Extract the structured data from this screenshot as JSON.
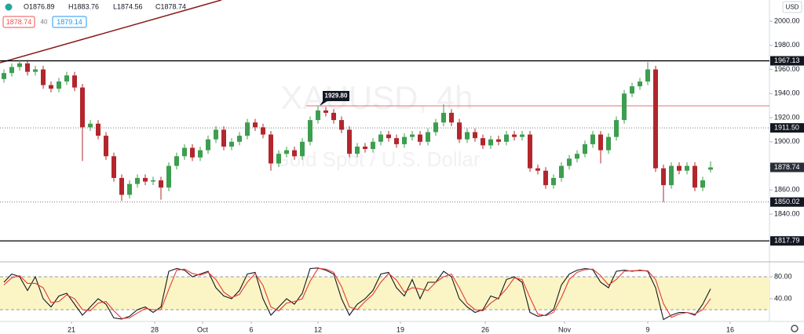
{
  "header": {
    "ohlc": [
      "O1876.89",
      "H1883.76",
      "L1874.56",
      "C1878.74"
    ],
    "bid": "1878.74",
    "spread": "40",
    "ask": "1879.14",
    "currency": "USD",
    "watermark": [
      "XAUUSD, 4h",
      "Gold Spot / U.S. Dollar"
    ]
  },
  "chart_data": [
    {
      "type": "candlestick",
      "up_color": "#3d9e4f",
      "down_color": "#b3262d",
      "xlim": [
        0,
        98
      ],
      "xticks": [
        {
          "value": 9.1,
          "label": "21"
        },
        {
          "value": 19.7,
          "label": "28"
        },
        {
          "value": 25.8,
          "label": "Oct"
        },
        {
          "value": 32,
          "label": "6"
        },
        {
          "value": 40.5,
          "label": "12"
        },
        {
          "value": 51,
          "label": "19"
        },
        {
          "value": 61.8,
          "label": "26"
        },
        {
          "value": 71.9,
          "label": "Nov"
        },
        {
          "value": 82.5,
          "label": "9"
        },
        {
          "value": 93,
          "label": "16"
        }
      ],
      "ylim": [
        1803,
        2017.56
      ],
      "yticks": [
        {
          "value": 1840,
          "label": "1840.00"
        },
        {
          "value": 1860,
          "label": "1860.00"
        },
        {
          "value": 1880,
          "label": "1880.00"
        },
        {
          "value": 1900,
          "label": "1900.00"
        },
        {
          "value": 1920,
          "label": "1920.00"
        },
        {
          "value": 1940,
          "label": "1940.00"
        },
        {
          "value": 1960,
          "label": "1960.00"
        },
        {
          "value": 1980,
          "label": "1980.00"
        },
        {
          "value": 2000,
          "label": "2000.00"
        }
      ],
      "levels": [
        {
          "value": 1967.13,
          "style": "solid"
        },
        {
          "value": 1911.5,
          "label": "1911.50",
          "style": "dotted"
        },
        {
          "value": 1850.02,
          "style": "dotted"
        },
        {
          "value": 1817.79,
          "style": "solid"
        }
      ],
      "annotation": {
        "value": 1929.8,
        "label": "1929.80",
        "color": "#e57373"
      },
      "last_price": 1878.74,
      "open": [
        1952,
        1957,
        1962,
        1965,
        1958,
        1960,
        1947,
        1944,
        1950,
        1955,
        1945,
        1912,
        1915,
        1905,
        1888,
        1870,
        1856,
        1865,
        1870,
        1867,
        1868,
        1862,
        1880,
        1888,
        1895,
        1887,
        1893,
        1902,
        1910,
        1896,
        1900,
        1905,
        1916,
        1912,
        1906,
        1882,
        1890,
        1893,
        1888,
        1900,
        1918,
        1926,
        1924,
        1918,
        1910,
        1890,
        1896,
        1894,
        1900,
        1906,
        1903,
        1898,
        1904,
        1906,
        1900,
        1908,
        1916,
        1924,
        1916,
        1902,
        1908,
        1903,
        1897,
        1902,
        1900,
        1906,
        1904,
        1906,
        1878,
        1876,
        1864,
        1870,
        1880,
        1886,
        1890,
        1898,
        1906,
        1893,
        1904,
        1918,
        1940,
        1946,
        1950,
        1960,
        1878,
        1864,
        1880,
        1876,
        1880,
        1862,
        1876.89
      ],
      "high": [
        1960,
        1965,
        1968,
        1968,
        1963,
        1963,
        1950,
        1953,
        1958,
        1958,
        1948,
        1918,
        1918,
        1908,
        1891,
        1873,
        1868,
        1873,
        1873,
        1871,
        1871,
        1883,
        1891,
        1898,
        1898,
        1896,
        1905,
        1913,
        1913,
        1903,
        1908,
        1919,
        1919,
        1915,
        1909,
        1893,
        1896,
        1896,
        1903,
        1921,
        1929.8,
        1929,
        1927,
        1921,
        1913,
        1899,
        1899,
        1903,
        1909,
        1909,
        1906,
        1907,
        1909,
        1909,
        1911,
        1919,
        1931,
        1927,
        1919,
        1911,
        1911,
        1906,
        1905,
        1905,
        1909,
        1909,
        1909,
        1909,
        1881,
        1879,
        1873,
        1883,
        1889,
        1893,
        1901,
        1909,
        1909,
        1907,
        1921,
        1943,
        1949,
        1953,
        1966,
        1963,
        1881,
        1883,
        1883,
        1883,
        1883,
        1871,
        1883.76
      ],
      "low": [
        1949,
        1954,
        1959,
        1955,
        1955,
        1944,
        1941,
        1941,
        1947,
        1942,
        1884,
        1909,
        1902,
        1885,
        1867,
        1851,
        1853,
        1862,
        1864,
        1864,
        1852,
        1859,
        1877,
        1885,
        1884,
        1884,
        1890,
        1899,
        1893,
        1893,
        1897,
        1902,
        1909,
        1903,
        1876,
        1879,
        1887,
        1885,
        1885,
        1897,
        1915,
        1921,
        1915,
        1907,
        1887,
        1887,
        1891,
        1891,
        1897,
        1900,
        1895,
        1895,
        1901,
        1897,
        1897,
        1905,
        1913,
        1913,
        1899,
        1899,
        1900,
        1894,
        1894,
        1897,
        1897,
        1901,
        1901,
        1875,
        1873,
        1861,
        1861,
        1867,
        1877,
        1883,
        1887,
        1895,
        1882,
        1890,
        1901,
        1915,
        1937,
        1943,
        1947,
        1875,
        1850,
        1861,
        1873,
        1873,
        1859,
        1859,
        1874.56
      ],
      "close": [
        1957,
        1962,
        1965,
        1958,
        1960,
        1947,
        1944,
        1950,
        1955,
        1945,
        1912,
        1915,
        1905,
        1888,
        1870,
        1856,
        1865,
        1870,
        1867,
        1868,
        1862,
        1880,
        1888,
        1895,
        1887,
        1893,
        1902,
        1910,
        1896,
        1900,
        1905,
        1916,
        1912,
        1906,
        1882,
        1890,
        1893,
        1888,
        1900,
        1918,
        1926,
        1924,
        1918,
        1910,
        1890,
        1896,
        1894,
        1900,
        1906,
        1903,
        1898,
        1904,
        1906,
        1900,
        1908,
        1916,
        1924,
        1916,
        1902,
        1908,
        1903,
        1897,
        1902,
        1900,
        1906,
        1904,
        1906,
        1878,
        1876,
        1864,
        1870,
        1880,
        1886,
        1890,
        1898,
        1906,
        1893,
        1904,
        1918,
        1940,
        1946,
        1950,
        1960,
        1878,
        1864,
        1880,
        1876,
        1880,
        1862,
        1868,
        1878.74
      ]
    },
    {
      "type": "line",
      "ylim": [
        -1.4,
        104.3
      ],
      "yticks": [
        {
          "value": 40,
          "label": "40.00"
        },
        {
          "value": 80,
          "label": "80.00"
        }
      ],
      "band": [
        20,
        80
      ],
      "band_color": "#fbf5c6",
      "series": [
        {
          "color": "#131722",
          "values": [
            70,
            85,
            80,
            55,
            80,
            40,
            25,
            45,
            50,
            30,
            10,
            25,
            40,
            30,
            5,
            3,
            8,
            20,
            25,
            15,
            25,
            90,
            95,
            92,
            80,
            85,
            90,
            60,
            45,
            40,
            55,
            85,
            88,
            40,
            10,
            25,
            40,
            30,
            50,
            95,
            96,
            92,
            85,
            40,
            10,
            30,
            40,
            55,
            85,
            88,
            60,
            45,
            75,
            40,
            70,
            70,
            90,
            80,
            40,
            25,
            15,
            20,
            45,
            40,
            75,
            80,
            70,
            15,
            8,
            10,
            20,
            65,
            85,
            92,
            95,
            93,
            70,
            60,
            90,
            92,
            90,
            92,
            90,
            60,
            2,
            10,
            15,
            15,
            10,
            30,
            58
          ]
        },
        {
          "color": "#e53935",
          "values": [
            65,
            78,
            82,
            68,
            68,
            60,
            33,
            35,
            47,
            40,
            20,
            18,
            32,
            35,
            18,
            4,
            5,
            14,
            22,
            20,
            20,
            57,
            92,
            94,
            86,
            83,
            88,
            75,
            52,
            42,
            48,
            70,
            86,
            64,
            25,
            18,
            32,
            35,
            40,
            72,
            95,
            94,
            88,
            62,
            25,
            20,
            35,
            48,
            70,
            86,
            74,
            52,
            60,
            58,
            55,
            70,
            80,
            85,
            60,
            32,
            20,
            18,
            32,
            42,
            58,
            78,
            75,
            42,
            12,
            9,
            15,
            42,
            75,
            88,
            93,
            94,
            82,
            65,
            75,
            90,
            91,
            91,
            91,
            75,
            31,
            6,
            12,
            15,
            12,
            20,
            40
          ]
        }
      ]
    }
  ]
}
